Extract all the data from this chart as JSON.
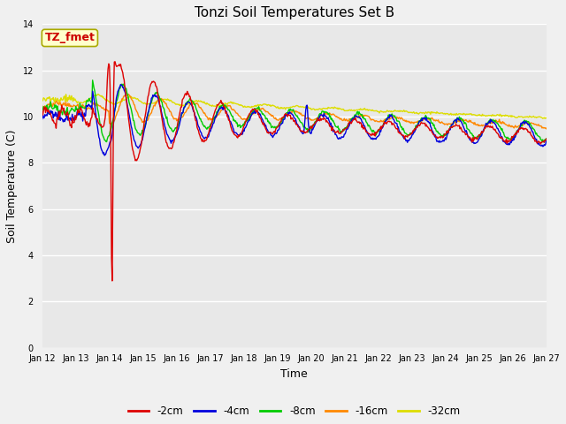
{
  "title": "Tonzi Soil Temperatures Set B",
  "xlabel": "Time",
  "ylabel": "Soil Temperature (C)",
  "ylim": [
    0,
    14
  ],
  "yticks": [
    0,
    2,
    4,
    6,
    8,
    10,
    12,
    14
  ],
  "x_tick_labels": [
    "Jan 12",
    "Jan 13",
    "Jan 14",
    "Jan 15",
    "Jan 16",
    "Jan 17",
    "Jan 18",
    "Jan 19",
    "Jan 20",
    "Jan 21",
    "Jan 22",
    "Jan 23",
    "Jan 24",
    "Jan 25",
    "Jan 26",
    "Jan 27"
  ],
  "annotation_text": "TZ_fmet",
  "annotation_color": "#cc0000",
  "annotation_bg": "#ffffcc",
  "annotation_border": "#aaaa00",
  "series_colors": [
    "#dd0000",
    "#0000dd",
    "#00cc00",
    "#ff8800",
    "#dddd00"
  ],
  "series_labels": [
    "-2cm",
    "-4cm",
    "-8cm",
    "-16cm",
    "-32cm"
  ],
  "line_width": 1.0,
  "plot_bg_color": "#e8e8e8",
  "fig_bg_color": "#f0f0f0",
  "grid_color": "#ffffff",
  "title_fontsize": 11,
  "tick_fontsize": 7,
  "label_fontsize": 9
}
